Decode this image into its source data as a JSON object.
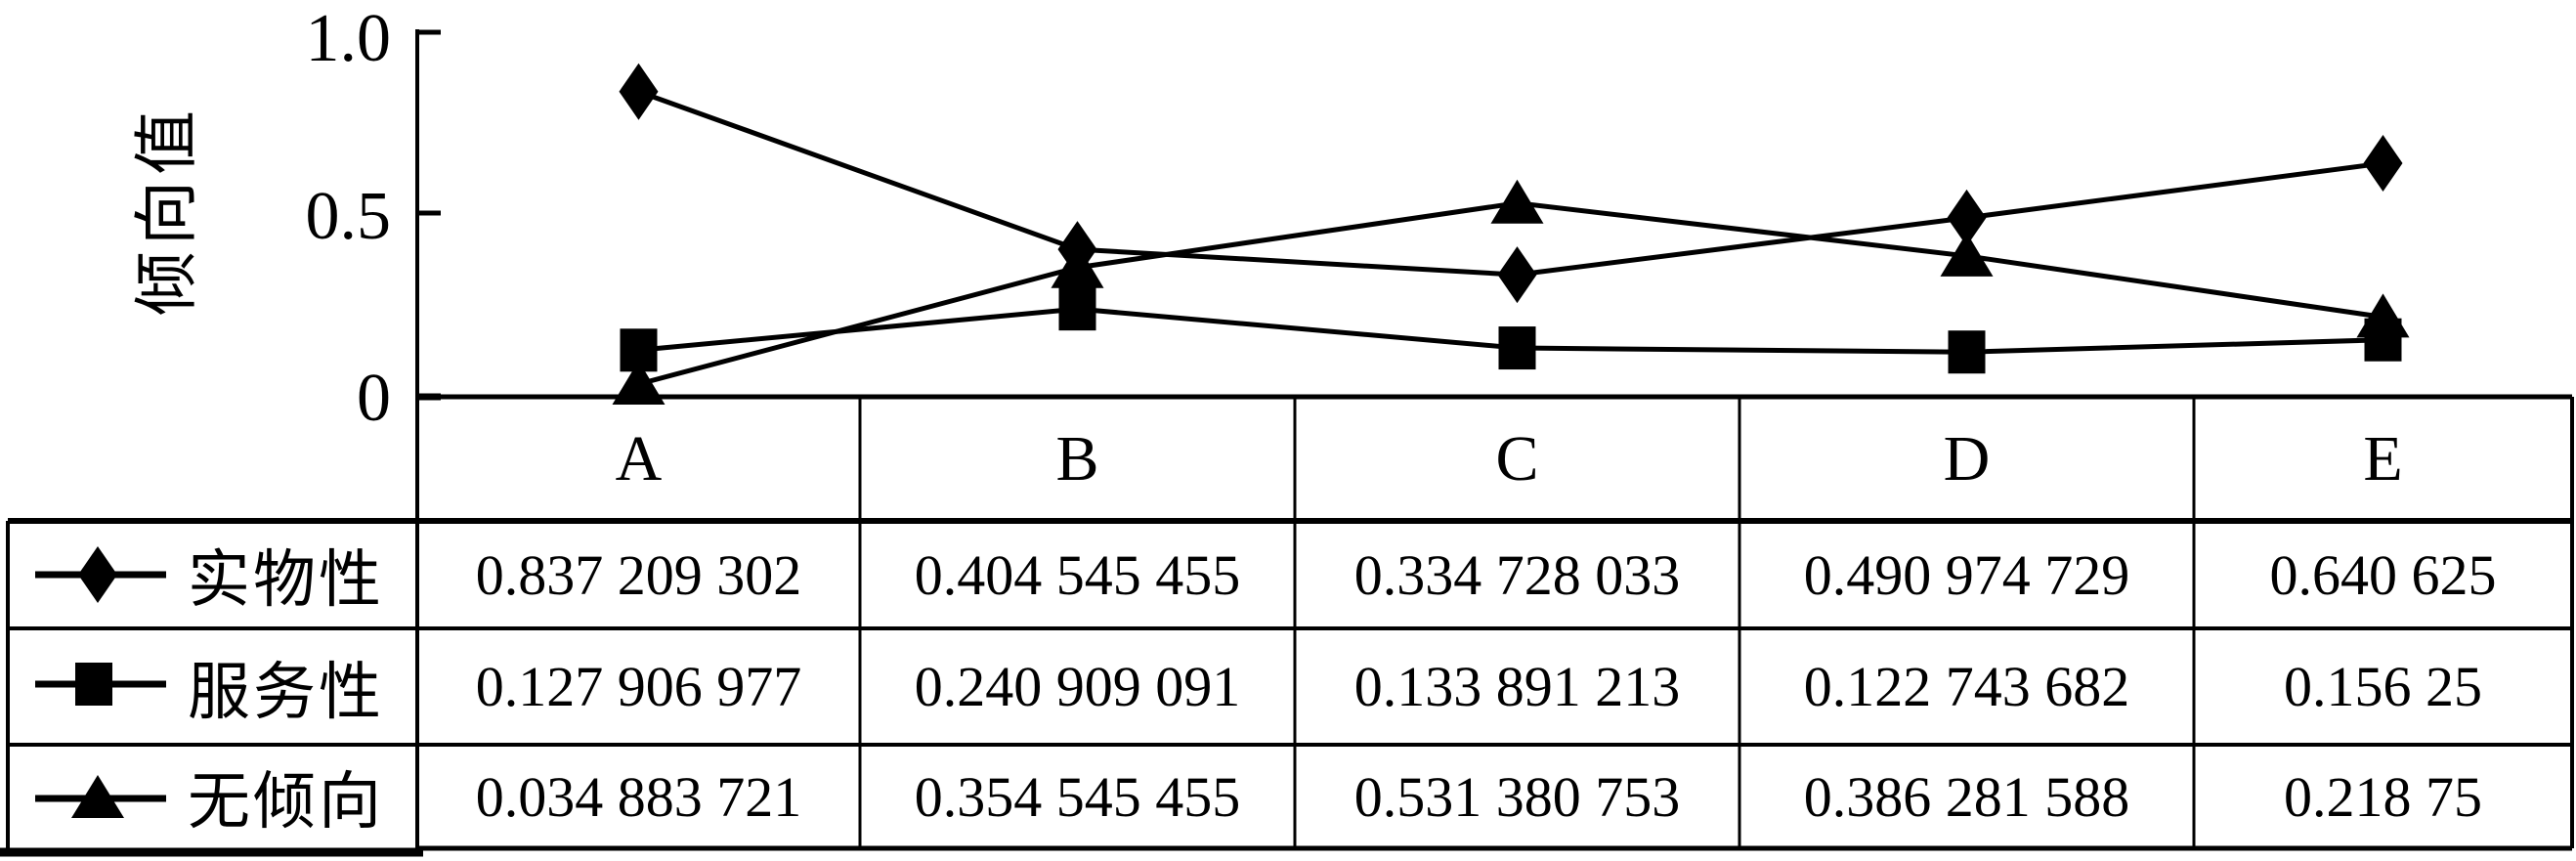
{
  "chart_data": {
    "type": "line",
    "title": "",
    "ylabel": "倾向值",
    "xlabel": "",
    "categories": [
      "A",
      "B",
      "C",
      "D",
      "E"
    ],
    "series": [
      {
        "name": "实物性",
        "marker": "diamond",
        "values": [
          0.837209302,
          0.404545455,
          0.334728033,
          0.490974729,
          0.640625
        ]
      },
      {
        "name": "服务性",
        "marker": "square",
        "values": [
          0.127906977,
          0.240909091,
          0.133891213,
          0.122743682,
          0.15625
        ]
      },
      {
        "name": "无倾向",
        "marker": "triangle",
        "values": [
          0.034883721,
          0.354545455,
          0.531380753,
          0.386281588,
          0.21875
        ]
      }
    ],
    "ylim": [
      0,
      1.0
    ],
    "yticks": [
      {
        "value": 1.0,
        "label": "1.0"
      },
      {
        "value": 0.5,
        "label": "0.5"
      },
      {
        "value": 0.0,
        "label": "0"
      }
    ],
    "grid": false,
    "line_color": "#000000",
    "legend_position": "left-column-of-table"
  },
  "axis": {
    "ytick_labels": [
      "1.0",
      "0.5",
      "0"
    ]
  },
  "table": {
    "column_headers": [
      "A",
      "B",
      "C",
      "D",
      "E"
    ],
    "rows": [
      {
        "label": "实物性",
        "marker": "diamond",
        "cells": [
          "0.837 209 302",
          "0.404 545 455",
          "0.334 728 033",
          "0.490 974 729",
          "0.640 625"
        ]
      },
      {
        "label": "服务性",
        "marker": "square",
        "cells": [
          "0.127 906 977",
          "0.240 909 091",
          "0.133 891 213",
          "0.122 743 682",
          "0.156 25"
        ]
      },
      {
        "label": "无倾向",
        "marker": "triangle",
        "cells": [
          "0.034 883 721",
          "0.354 545 455",
          "0.531 380 753",
          "0.386 281 588",
          "0.218 75"
        ]
      }
    ]
  }
}
